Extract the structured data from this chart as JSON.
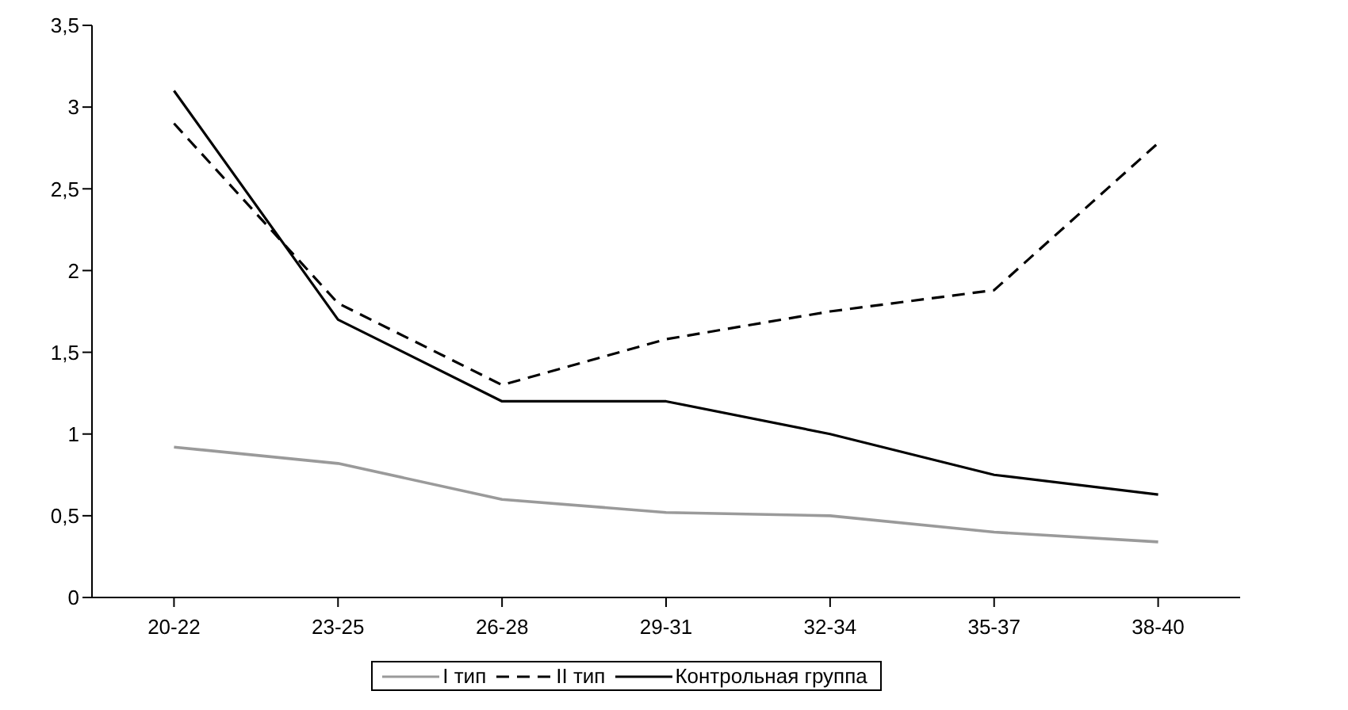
{
  "chart_data": {
    "type": "line",
    "categories": [
      "20-22",
      "23-25",
      "26-28",
      "29-31",
      "32-34",
      "35-37",
      "38-40"
    ],
    "series": [
      {
        "name": "I тип",
        "color": "#9a9a9a",
        "line_style": "solid",
        "values": [
          0.92,
          0.82,
          0.6,
          0.52,
          0.5,
          0.4,
          0.34
        ]
      },
      {
        "name": "II тип",
        "color": "#000000",
        "line_style": "dashed",
        "values": [
          2.9,
          1.8,
          1.3,
          1.58,
          1.75,
          1.88,
          2.78
        ]
      },
      {
        "name": "Контрольная группа",
        "color": "#000000",
        "line_style": "solid",
        "values": [
          3.1,
          1.7,
          1.2,
          1.2,
          1.0,
          0.75,
          0.63
        ]
      }
    ],
    "ylim": [
      0,
      3.5
    ],
    "yticks": [
      0,
      {
        "value": 0.5,
        "label": "0,5"
      },
      1,
      {
        "value": 1.5,
        "label": "1,5"
      },
      2,
      {
        "value": 2.5,
        "label": "2,5"
      },
      3,
      {
        "value": 3.5,
        "label": "3,5"
      }
    ],
    "grid": false,
    "legend": "bottom",
    "marker": "none"
  }
}
